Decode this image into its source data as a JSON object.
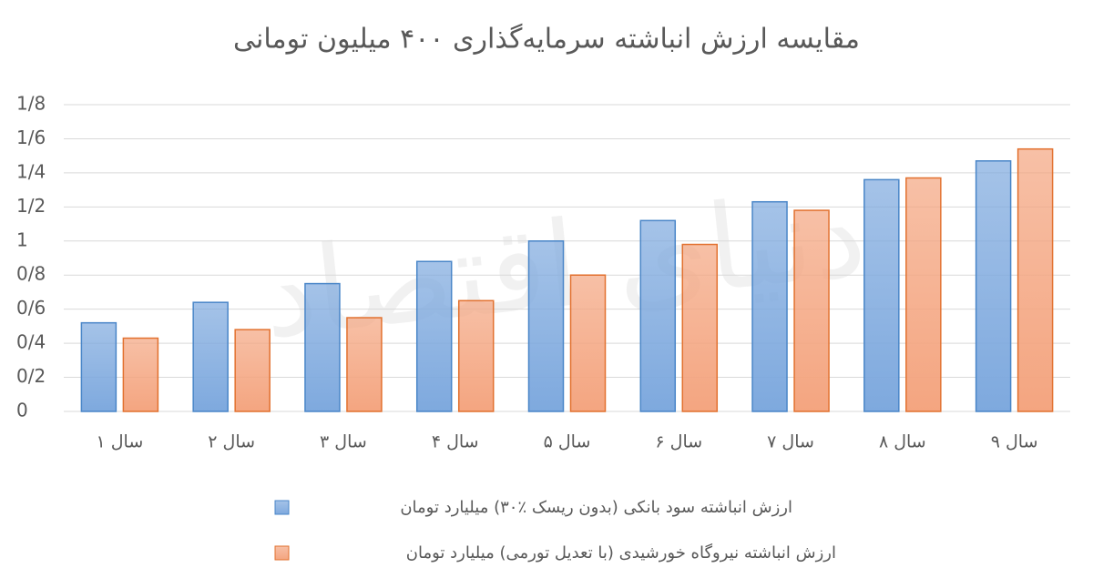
{
  "chart_data": {
    "type": "bar",
    "title": "مقایسه ارزش انباشته سرمایه‌گذاری ۴۰۰ میلیون تومانی",
    "watermark": "دنیای اقتصاد",
    "categories": [
      "سال ۱",
      "سال ۲",
      "سال ۳",
      "سال ۴",
      "سال ۵",
      "سال ۶",
      "سال ۷",
      "سال ۸",
      "سال ۹"
    ],
    "series": [
      {
        "name": "ارزش انباشته سود بانکی (بدون ریسک ٪۳۰) میلیارد تومان",
        "color": "#7ea9de",
        "values": [
          0.52,
          0.64,
          0.75,
          0.88,
          1.0,
          1.12,
          1.23,
          1.36,
          1.47
        ]
      },
      {
        "name": "ارزش انباشته نیروگاه خورشیدی (با تعدیل تورمی) میلیارد تومان",
        "color": "#f4a580",
        "values": [
          0.43,
          0.48,
          0.55,
          0.65,
          0.8,
          0.98,
          1.18,
          1.37,
          1.54
        ]
      }
    ],
    "ylim": [
      0,
      1.8
    ],
    "yticks": [
      0,
      {
        "value": 0.2,
        "label": "0/2"
      },
      {
        "value": 0.4,
        "label": "0/4"
      },
      {
        "value": 0.6,
        "label": "0/6"
      },
      {
        "value": 0.8,
        "label": "0/8"
      },
      1,
      {
        "value": 1.2,
        "label": "1/2"
      },
      {
        "value": 1.4,
        "label": "1/4"
      },
      {
        "value": 1.6,
        "label": "1/6"
      },
      {
        "value": 1.8,
        "label": "1/8"
      }
    ],
    "grid": true
  }
}
